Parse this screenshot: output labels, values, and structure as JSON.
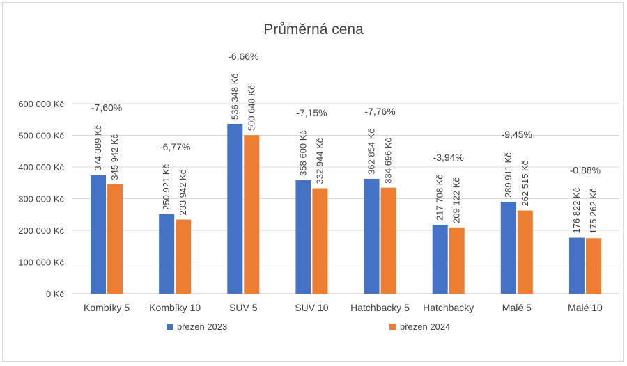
{
  "chart_data": {
    "type": "bar",
    "title": "Průměrná cena",
    "categories": [
      "Kombíky 5",
      "Kombíky 10",
      "SUV 5",
      "SUV 10",
      "Hatchbacky 5",
      "Hatchbacky",
      "Malé 5",
      "Malé 10"
    ],
    "series": [
      {
        "name": "březen 2023",
        "color": "#4472c4",
        "values": [
          374389,
          250921,
          536348,
          358600,
          362854,
          217708,
          289911,
          176822
        ],
        "labels": [
          "374 389 Kč",
          "250 921 Kč",
          "536 348 Kč",
          "358 600 Kč",
          "362 854 Kč",
          "217 708 Kč",
          "289 911 Kč",
          "176 822 Kč"
        ]
      },
      {
        "name": "březen 2024",
        "color": "#ed7d31",
        "values": [
          345942,
          233942,
          500648,
          332944,
          334696,
          209122,
          262515,
          175262
        ],
        "labels": [
          "345 942 Kč",
          "233 942 Kč",
          "500 648 Kč",
          "332 944 Kč",
          "334 696 Kč",
          "209 122 Kč",
          "262 515 Kč",
          "175 262 Kč"
        ]
      }
    ],
    "annotations": [
      "-7,60%",
      "-6,77%",
      "-6,66%",
      "-7,15%",
      "-7,76%",
      "-3,94%",
      "-9,45%",
      "-0,88%"
    ],
    "ylim": [
      0,
      600000
    ],
    "yticks": [
      0,
      100000,
      200000,
      300000,
      400000,
      500000,
      600000
    ],
    "ytick_labels": [
      "0 Kč",
      "100 000 Kč",
      "200 000 Kč",
      "300 000 Kč",
      "400 000 Kč",
      "500 000 Kč",
      "600 000 Kč"
    ],
    "xlabel": "",
    "ylabel": "",
    "grid": true,
    "legend_position": "bottom"
  }
}
